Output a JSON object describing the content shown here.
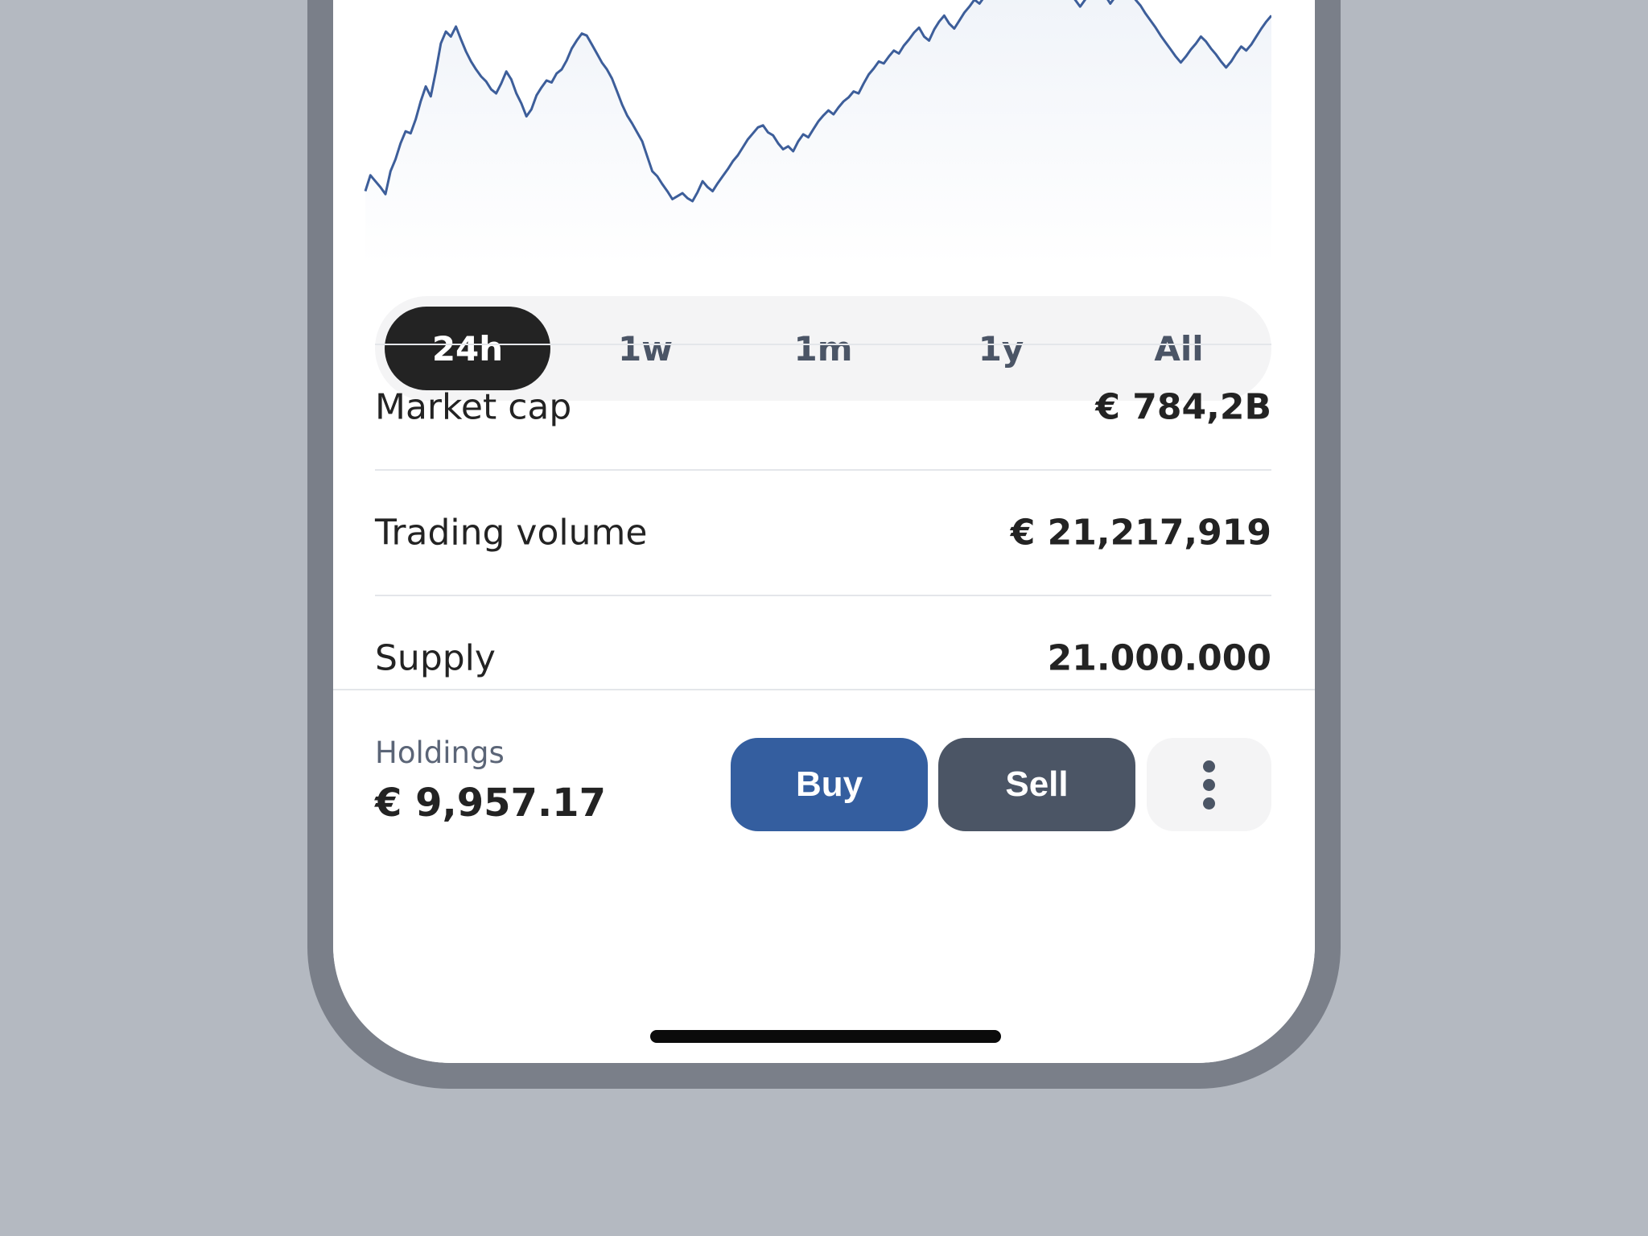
{
  "chart": {
    "line_color": "#3d5e9a",
    "fill_color": "#eef2f8",
    "series": [
      20,
      36,
      30,
      24,
      17,
      40,
      52,
      68,
      80,
      78,
      92,
      110,
      125,
      115,
      140,
      168,
      180,
      175,
      185,
      172,
      160,
      150,
      142,
      135,
      130,
      122,
      118,
      128,
      140,
      132,
      118,
      108,
      95,
      102,
      116,
      124,
      131,
      129,
      138,
      142,
      151,
      163,
      171,
      178,
      176,
      167,
      158,
      149,
      142,
      133,
      120,
      107,
      96,
      88,
      79,
      70,
      55,
      40,
      35,
      27,
      20,
      12,
      15,
      18,
      13,
      10,
      19,
      30,
      24,
      20,
      28,
      35,
      42,
      50,
      56,
      64,
      72,
      78,
      84,
      86,
      79,
      76,
      68,
      62,
      65,
      60,
      70,
      77,
      74,
      82,
      90,
      96,
      101,
      97,
      104,
      110,
      114,
      120,
      118,
      128,
      137,
      143,
      150,
      148,
      155,
      161,
      158,
      166,
      172,
      179,
      184,
      175,
      171,
      182,
      190,
      196,
      188,
      183,
      191,
      199,
      205,
      212,
      208,
      215,
      223,
      218,
      225,
      232,
      229,
      236,
      242,
      238,
      246,
      243,
      250,
      256,
      248,
      241,
      233,
      226,
      219,
      212,
      205,
      212,
      220,
      228,
      224,
      216,
      208,
      215,
      221,
      226,
      219,
      212,
      206,
      198,
      191,
      184,
      176,
      169,
      162,
      155,
      149,
      155,
      162,
      168,
      175,
      170,
      163,
      157,
      150,
      144,
      150,
      158,
      165,
      161,
      167,
      175,
      183,
      190,
      196
    ]
  },
  "periods": {
    "items": [
      "24h",
      "1w",
      "1m",
      "1y",
      "All"
    ],
    "active": "24h"
  },
  "stats": [
    {
      "label": "Market cap",
      "value": "€ 784,2B"
    },
    {
      "label": "Trading volume",
      "value": "€ 21,217,919"
    },
    {
      "label": "Supply",
      "value": "21.000.000"
    }
  ],
  "holdings": {
    "label": "Holdings",
    "value": "€ 9,957.17"
  },
  "actions": {
    "buy_label": "Buy",
    "sell_label": "Sell",
    "more_icon": "vertical-ellipsis-icon",
    "buy_color": "#345e9f",
    "sell_color": "#4b5565"
  }
}
